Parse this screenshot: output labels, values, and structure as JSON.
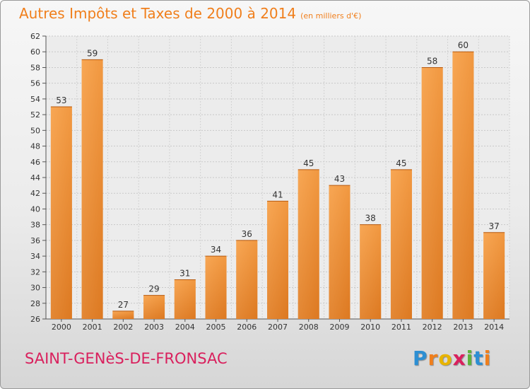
{
  "header": {
    "title": "Autres Impôts et Taxes de 2000 à 2014",
    "subtitle": "(en milliers d'€)"
  },
  "footer": {
    "town": "SAINT-GENèS-DE-FRONSAC",
    "logo_letters": [
      "P",
      "r",
      "o",
      "x",
      "i",
      "t",
      "i"
    ],
    "logo_colors": [
      "#2d8fd3",
      "#f07f1c",
      "#e8b400",
      "#d9205d",
      "#5db33b",
      "#2d8fd3",
      "#f07f1c"
    ]
  },
  "colors": {
    "bar_light": "#f6a24f",
    "bar_dark": "#d9701a",
    "title": "#f07f1c",
    "town": "#d9205d"
  },
  "chart_data": {
    "type": "bar",
    "categories": [
      "2000",
      "2001",
      "2002",
      "2003",
      "2004",
      "2005",
      "2006",
      "2007",
      "2008",
      "2009",
      "2010",
      "2011",
      "2012",
      "2013",
      "2014"
    ],
    "values": [
      53,
      59,
      27,
      29,
      31,
      34,
      36,
      41,
      45,
      43,
      38,
      45,
      58,
      60,
      37
    ],
    "y_ticks": [
      26,
      28,
      30,
      32,
      34,
      36,
      38,
      40,
      42,
      44,
      46,
      48,
      50,
      52,
      54,
      56,
      58,
      60,
      62
    ],
    "ylim": [
      26,
      62
    ],
    "grid": true
  }
}
